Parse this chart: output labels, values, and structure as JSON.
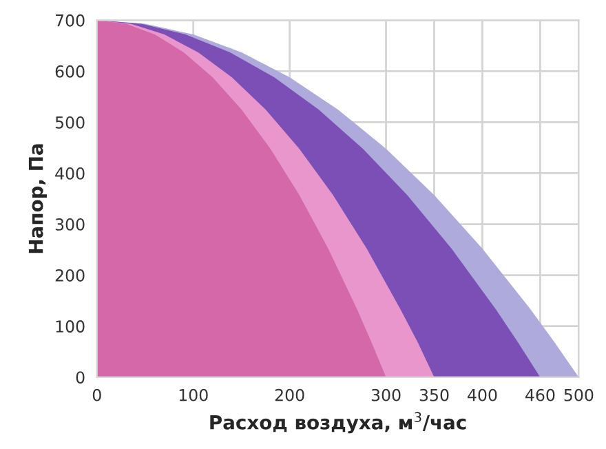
{
  "chart_data": {
    "type": "area",
    "xlabel": "Расход воздуха, м$^{3}$/час",
    "ylabel": "Напор, Па",
    "series": [
      {
        "color": "#aeaadc",
        "x": [
          0,
          50,
          100,
          150,
          200,
          250,
          300,
          350,
          400,
          450,
          475,
          500
        ],
        "values": [
          700,
          693,
          672,
          637,
          588,
          525,
          448,
          357,
          252,
          133,
          68,
          0
        ]
      },
      {
        "color": "#7b4fb5",
        "x": [
          0,
          46,
          92,
          138,
          184,
          230,
          276,
          322,
          368,
          414,
          437,
          460
        ],
        "values": [
          700,
          693,
          672,
          637,
          588,
          525,
          448,
          357,
          252,
          133,
          68,
          0
        ]
      },
      {
        "color": "#e896cc",
        "x": [
          0,
          35,
          70,
          105,
          140,
          175,
          210,
          245,
          280,
          315,
          333,
          350
        ],
        "values": [
          700,
          693,
          672,
          637,
          588,
          525,
          448,
          357,
          252,
          133,
          68,
          0
        ]
      },
      {
        "color": "#d468a9",
        "x": [
          0,
          30,
          60,
          90,
          120,
          150,
          180,
          210,
          240,
          270,
          285,
          300
        ],
        "values": [
          700,
          693,
          672,
          637,
          588,
          525,
          448,
          357,
          252,
          133,
          68,
          0
        ]
      }
    ],
    "xlim": [
      0,
      500
    ],
    "ylim": [
      0,
      700
    ],
    "xticks": [
      0,
      100,
      200,
      300,
      350,
      400,
      460,
      500
    ],
    "yticks": [
      0,
      100,
      200,
      300,
      400,
      500,
      600,
      700
    ],
    "grid": true
  }
}
